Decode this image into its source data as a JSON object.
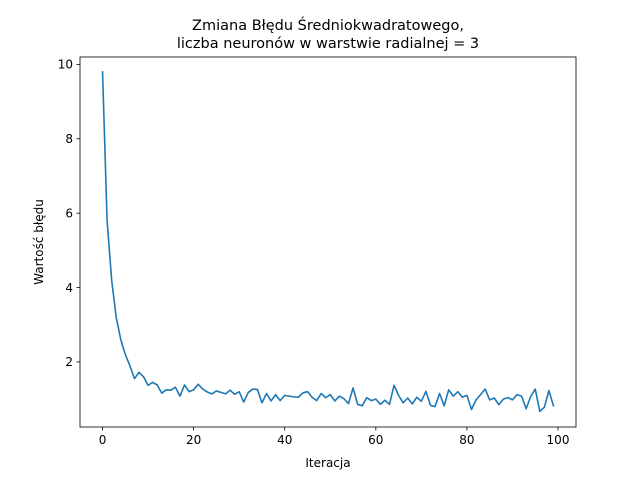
{
  "chart_data": {
    "type": "line",
    "title_lines": [
      "Zmiana Błędu Średniokwadratowego,",
      "liczba neuronów w warstwie radialnej = 3"
    ],
    "xlabel": "Iteracja",
    "ylabel": "Wartość błędu",
    "xlim": [
      -4.95,
      103.95
    ],
    "ylim": [
      0.25,
      10.2
    ],
    "xticks": [
      0,
      20,
      40,
      60,
      80,
      100
    ],
    "yticks": [
      2,
      4,
      6,
      8,
      10
    ],
    "grid": false,
    "line_color": "#1f77b4",
    "series": [
      {
        "x": [
          0,
          1,
          2,
          3,
          4,
          5,
          6,
          7,
          8,
          9,
          10,
          11,
          12,
          13,
          14,
          15,
          16,
          17,
          18,
          19,
          20,
          21,
          22,
          23,
          24,
          25,
          26,
          27,
          28,
          29,
          30,
          31,
          32,
          33,
          34,
          35,
          36,
          37,
          38,
          39,
          40,
          41,
          42,
          43,
          44,
          45,
          46,
          47,
          48,
          49,
          50,
          51,
          52,
          53,
          54,
          55,
          56,
          57,
          58,
          59,
          60,
          61,
          62,
          63,
          64,
          65,
          66,
          67,
          68,
          69,
          70,
          71,
          72,
          73,
          74,
          75,
          76,
          77,
          78,
          79,
          80,
          81,
          82,
          83,
          84,
          85,
          86,
          87,
          88,
          89,
          90,
          91,
          92,
          93,
          94,
          95,
          96,
          97,
          98,
          99
        ],
        "values": [
          9.8,
          5.8,
          4.2,
          3.2,
          2.6,
          2.2,
          1.9,
          1.55,
          1.72,
          1.6,
          1.37,
          1.45,
          1.38,
          1.16,
          1.25,
          1.24,
          1.32,
          1.08,
          1.38,
          1.2,
          1.25,
          1.4,
          1.27,
          1.19,
          1.14,
          1.22,
          1.18,
          1.14,
          1.24,
          1.13,
          1.2,
          0.92,
          1.18,
          1.27,
          1.26,
          0.9,
          1.15,
          0.95,
          1.12,
          0.96,
          1.1,
          1.08,
          1.06,
          1.05,
          1.17,
          1.2,
          1.05,
          0.96,
          1.15,
          1.04,
          1.12,
          0.95,
          1.08,
          1.01,
          0.88,
          1.3,
          0.86,
          0.82,
          1.04,
          0.96,
          1.0,
          0.86,
          0.97,
          0.86,
          1.37,
          1.1,
          0.9,
          1.03,
          0.87,
          1.05,
          0.94,
          1.21,
          0.83,
          0.8,
          1.15,
          0.82,
          1.25,
          1.08,
          1.2,
          1.05,
          1.1,
          0.72,
          0.98,
          1.12,
          1.27,
          0.98,
          1.03,
          0.85,
          1.0,
          1.04,
          0.98,
          1.12,
          1.08,
          0.74,
          1.07,
          1.27,
          0.67,
          0.78,
          1.23,
          0.82
        ]
      }
    ]
  }
}
